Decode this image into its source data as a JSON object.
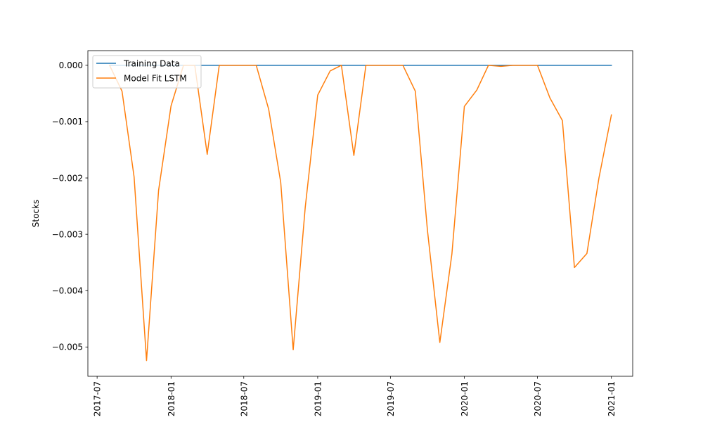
{
  "chart_data": {
    "type": "line",
    "title": "",
    "xlabel": "",
    "ylabel": "Stocks",
    "x_tick_labels": [
      "2017-07",
      "2018-01",
      "2018-07",
      "2019-01",
      "2019-07",
      "2020-01",
      "2020-07",
      "2021-01"
    ],
    "y_tick_labels": [
      "0.000",
      "−0.001",
      "−0.002",
      "−0.003",
      "−0.004",
      "−0.005"
    ],
    "y_ticks": [
      0.0,
      -0.001,
      -0.002,
      -0.003,
      -0.004,
      -0.005
    ],
    "xlim": [
      "2017-06-08",
      "2021-02-23"
    ],
    "ylim": [
      -0.00552,
      0.00026
    ],
    "grid": false,
    "legend_position": "top-left",
    "x": [
      "2017-08",
      "2017-09",
      "2017-10",
      "2017-11",
      "2017-12",
      "2018-01",
      "2018-02",
      "2018-03",
      "2018-04",
      "2018-05",
      "2018-06",
      "2018-07",
      "2018-08",
      "2018-09",
      "2018-10",
      "2018-11",
      "2018-12",
      "2019-01",
      "2019-02",
      "2019-03",
      "2019-04",
      "2019-05",
      "2019-06",
      "2019-07",
      "2019-08",
      "2019-09",
      "2019-10",
      "2019-11",
      "2019-12",
      "2020-01",
      "2020-02",
      "2020-03",
      "2020-04",
      "2020-05",
      "2020-06",
      "2020-07",
      "2020-08",
      "2020-09",
      "2020-10",
      "2020-11",
      "2020-12",
      "2021-01"
    ],
    "series": [
      {
        "name": "Training Data",
        "color": "#1f77b4",
        "values": [
          0,
          0,
          0,
          0,
          0,
          0,
          0,
          0,
          0,
          0,
          0,
          0,
          0,
          0,
          0,
          0,
          0,
          0,
          0,
          0,
          0,
          0,
          0,
          0,
          0,
          0,
          0,
          0,
          0,
          0,
          0,
          0,
          0,
          0,
          0,
          0,
          0,
          0,
          0,
          0,
          0,
          0
        ]
      },
      {
        "name": "Model Fit LSTM",
        "color": "#ff7f0e",
        "values": [
          0.0,
          -0.00046,
          -0.00198,
          -0.00524,
          -0.00222,
          -0.00072,
          0.0,
          0.0,
          -0.00158,
          0.0,
          0.0,
          0.0,
          0.0,
          -0.00078,
          -0.00208,
          -0.00505,
          -0.00252,
          -0.00053,
          -0.0001,
          0.0,
          -0.0016,
          0.0,
          0.0,
          0.0,
          0.0,
          -0.00046,
          -0.00292,
          -0.00492,
          -0.00335,
          -0.00073,
          -0.00044,
          0.0,
          -2e-05,
          0.0,
          0.0,
          0.0,
          -0.00058,
          -0.00098,
          -0.00359,
          -0.00334,
          -0.002,
          -0.00088
        ]
      }
    ]
  }
}
